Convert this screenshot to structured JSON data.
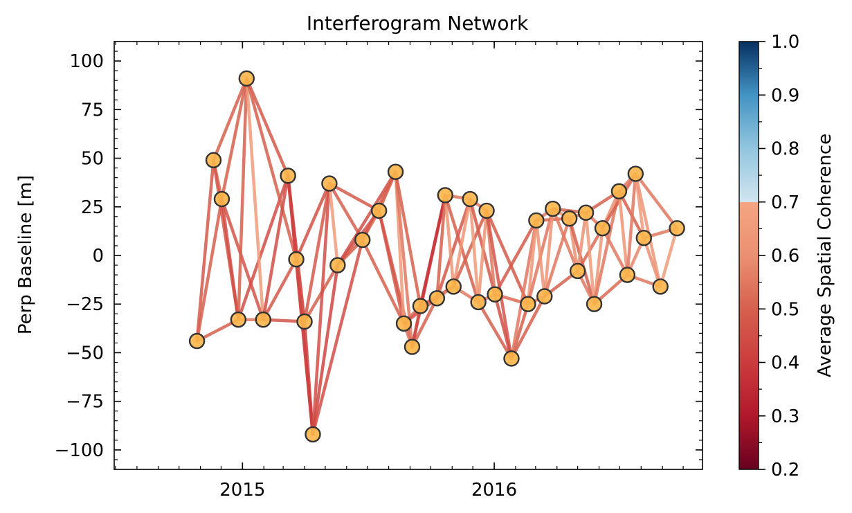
{
  "chart_data": {
    "type": "scatter",
    "title": "Interferogram Network",
    "xlabel": "",
    "ylabel": "Perp Baseline [m]",
    "x_type": "date",
    "xlim": [
      "2014-06-29",
      "2016-10-29"
    ],
    "ylim": [
      -110,
      110
    ],
    "x_ticks": [
      {
        "date": "2015-01-01",
        "label": "2015"
      },
      {
        "date": "2016-01-01",
        "label": "2016"
      }
    ],
    "y_ticks": [
      {
        "value": 100,
        "label": "100"
      },
      {
        "value": 75,
        "label": "75"
      },
      {
        "value": 50,
        "label": "50"
      },
      {
        "value": 25,
        "label": "25"
      },
      {
        "value": 0,
        "label": "0"
      },
      {
        "value": -25,
        "label": "−25"
      },
      {
        "value": -50,
        "label": "−50"
      },
      {
        "value": -75,
        "label": "−75"
      },
      {
        "value": -100,
        "label": "−100"
      }
    ],
    "grid": false,
    "colorbar": {
      "label": "Average Spatial Coherence",
      "range": [
        0.2,
        1.0
      ],
      "ticks": [
        {
          "value": 1.0,
          "label": "1.0"
        },
        {
          "value": 0.9,
          "label": "0.9"
        },
        {
          "value": 0.8,
          "label": "0.8"
        },
        {
          "value": 0.7,
          "label": "0.7"
        },
        {
          "value": 0.6,
          "label": "0.6"
        },
        {
          "value": 0.5,
          "label": "0.5"
        },
        {
          "value": 0.4,
          "label": "0.4"
        },
        {
          "value": 0.3,
          "label": "0.3"
        },
        {
          "value": 0.2,
          "label": "0.2"
        }
      ],
      "colormap": "RdBu (clipped above 0.7)"
    },
    "acquisitions": [
      {
        "date": "2014-10-27",
        "bperp": -44
      },
      {
        "date": "2014-11-20",
        "bperp": 49
      },
      {
        "date": "2014-12-02",
        "bperp": 29
      },
      {
        "date": "2014-12-26",
        "bperp": -33
      },
      {
        "date": "2015-01-07",
        "bperp": 91
      },
      {
        "date": "2015-01-31",
        "bperp": -33
      },
      {
        "date": "2015-03-08",
        "bperp": 41
      },
      {
        "date": "2015-03-20",
        "bperp": -2
      },
      {
        "date": "2015-04-01",
        "bperp": -34
      },
      {
        "date": "2015-04-13",
        "bperp": -92
      },
      {
        "date": "2015-05-07",
        "bperp": 37
      },
      {
        "date": "2015-05-19",
        "bperp": -5
      },
      {
        "date": "2015-06-24",
        "bperp": 8
      },
      {
        "date": "2015-07-18",
        "bperp": 23
      },
      {
        "date": "2015-08-11",
        "bperp": 43
      },
      {
        "date": "2015-08-23",
        "bperp": -35
      },
      {
        "date": "2015-09-04",
        "bperp": -47
      },
      {
        "date": "2015-09-16",
        "bperp": -26
      },
      {
        "date": "2015-10-10",
        "bperp": -22
      },
      {
        "date": "2015-10-22",
        "bperp": 31
      },
      {
        "date": "2015-11-03",
        "bperp": -16
      },
      {
        "date": "2015-11-27",
        "bperp": 29
      },
      {
        "date": "2015-12-09",
        "bperp": -24
      },
      {
        "date": "2015-12-21",
        "bperp": 23
      },
      {
        "date": "2016-01-02",
        "bperp": -20
      },
      {
        "date": "2016-01-26",
        "bperp": -53
      },
      {
        "date": "2016-02-19",
        "bperp": -25
      },
      {
        "date": "2016-03-02",
        "bperp": 18
      },
      {
        "date": "2016-03-14",
        "bperp": -21
      },
      {
        "date": "2016-03-26",
        "bperp": 24
      },
      {
        "date": "2016-04-19",
        "bperp": 19
      },
      {
        "date": "2016-05-01",
        "bperp": -8
      },
      {
        "date": "2016-05-13",
        "bperp": 22
      },
      {
        "date": "2016-05-25",
        "bperp": -25
      },
      {
        "date": "2016-06-06",
        "bperp": 14
      },
      {
        "date": "2016-06-30",
        "bperp": 33
      },
      {
        "date": "2016-07-12",
        "bperp": -10
      },
      {
        "date": "2016-07-24",
        "bperp": 42
      },
      {
        "date": "2016-08-05",
        "bperp": 9
      },
      {
        "date": "2016-08-29",
        "bperp": -16
      },
      {
        "date": "2016-09-22",
        "bperp": 14
      }
    ],
    "pairs": [
      [
        0,
        1,
        0.48
      ],
      [
        0,
        2,
        0.5
      ],
      [
        0,
        3,
        0.5
      ],
      [
        1,
        2,
        0.52
      ],
      [
        1,
        3,
        0.48
      ],
      [
        1,
        4,
        0.5
      ],
      [
        2,
        3,
        0.45
      ],
      [
        2,
        4,
        0.5
      ],
      [
        2,
        5,
        0.47
      ],
      [
        3,
        4,
        0.5
      ],
      [
        3,
        5,
        0.55
      ],
      [
        3,
        6,
        0.45
      ],
      [
        4,
        5,
        0.65
      ],
      [
        4,
        6,
        0.48
      ],
      [
        4,
        7,
        0.5
      ],
      [
        5,
        6,
        0.45
      ],
      [
        5,
        7,
        0.48
      ],
      [
        5,
        8,
        0.47
      ],
      [
        6,
        7,
        0.46
      ],
      [
        6,
        8,
        0.4
      ],
      [
        6,
        9,
        0.42
      ],
      [
        7,
        8,
        0.48
      ],
      [
        7,
        9,
        0.43
      ],
      [
        7,
        10,
        0.46
      ],
      [
        8,
        9,
        0.4
      ],
      [
        8,
        10,
        0.48
      ],
      [
        8,
        11,
        0.5
      ],
      [
        9,
        10,
        0.45
      ],
      [
        9,
        11,
        0.43
      ],
      [
        9,
        12,
        0.45
      ],
      [
        10,
        11,
        0.65
      ],
      [
        10,
        12,
        0.5
      ],
      [
        10,
        13,
        0.48
      ],
      [
        11,
        12,
        0.5
      ],
      [
        11,
        13,
        0.47
      ],
      [
        11,
        14,
        0.45
      ],
      [
        12,
        13,
        0.55
      ],
      [
        12,
        14,
        0.48
      ],
      [
        12,
        15,
        0.5
      ],
      [
        13,
        14,
        0.5
      ],
      [
        13,
        15,
        0.48
      ],
      [
        13,
        16,
        0.47
      ],
      [
        14,
        15,
        0.65
      ],
      [
        14,
        16,
        0.55
      ],
      [
        14,
        17,
        0.5
      ],
      [
        15,
        16,
        0.55
      ],
      [
        15,
        17,
        0.52
      ],
      [
        15,
        18,
        0.46
      ],
      [
        16,
        17,
        0.55
      ],
      [
        16,
        18,
        0.5
      ],
      [
        16,
        19,
        0.42
      ],
      [
        17,
        18,
        0.55
      ],
      [
        17,
        19,
        0.38
      ],
      [
        17,
        20,
        0.48
      ],
      [
        18,
        19,
        0.5
      ],
      [
        18,
        20,
        0.55
      ],
      [
        18,
        21,
        0.48
      ],
      [
        19,
        20,
        0.62
      ],
      [
        19,
        21,
        0.55
      ],
      [
        19,
        22,
        0.5
      ],
      [
        20,
        21,
        0.63
      ],
      [
        20,
        22,
        0.55
      ],
      [
        20,
        23,
        0.5
      ],
      [
        21,
        22,
        0.65
      ],
      [
        21,
        23,
        0.55
      ],
      [
        21,
        24,
        0.48
      ],
      [
        22,
        23,
        0.62
      ],
      [
        22,
        24,
        0.55
      ],
      [
        22,
        25,
        0.5
      ],
      [
        23,
        24,
        0.55
      ],
      [
        23,
        25,
        0.47
      ],
      [
        23,
        26,
        0.48
      ],
      [
        24,
        25,
        0.45
      ],
      [
        24,
        26,
        0.52
      ],
      [
        24,
        27,
        0.48
      ],
      [
        25,
        26,
        0.5
      ],
      [
        25,
        27,
        0.55
      ],
      [
        25,
        28,
        0.5
      ],
      [
        26,
        27,
        0.63
      ],
      [
        26,
        28,
        0.55
      ],
      [
        26,
        29,
        0.55
      ],
      [
        27,
        28,
        0.62
      ],
      [
        27,
        29,
        0.55
      ],
      [
        27,
        30,
        0.52
      ],
      [
        28,
        29,
        0.62
      ],
      [
        28,
        30,
        0.55
      ],
      [
        28,
        31,
        0.5
      ],
      [
        29,
        30,
        0.6
      ],
      [
        29,
        31,
        0.55
      ],
      [
        29,
        32,
        0.5
      ],
      [
        30,
        31,
        0.6
      ],
      [
        30,
        32,
        0.55
      ],
      [
        30,
        33,
        0.5
      ],
      [
        31,
        32,
        0.6
      ],
      [
        31,
        33,
        0.55
      ],
      [
        31,
        34,
        0.52
      ],
      [
        32,
        33,
        0.65
      ],
      [
        32,
        34,
        0.55
      ],
      [
        32,
        35,
        0.5
      ],
      [
        33,
        34,
        0.62
      ],
      [
        33,
        35,
        0.55
      ],
      [
        33,
        36,
        0.52
      ],
      [
        34,
        35,
        0.6
      ],
      [
        34,
        36,
        0.55
      ],
      [
        34,
        37,
        0.5
      ],
      [
        35,
        36,
        0.62
      ],
      [
        35,
        37,
        0.55
      ],
      [
        35,
        38,
        0.5
      ],
      [
        36,
        37,
        0.55
      ],
      [
        36,
        38,
        0.58
      ],
      [
        36,
        39,
        0.55
      ],
      [
        37,
        38,
        0.65
      ],
      [
        37,
        39,
        0.62
      ],
      [
        37,
        40,
        0.55
      ],
      [
        38,
        39,
        0.6
      ],
      [
        38,
        40,
        0.55
      ],
      [
        39,
        40,
        0.65
      ]
    ],
    "marker_fill": "#fbb64a",
    "marker_edge": "#333333"
  }
}
